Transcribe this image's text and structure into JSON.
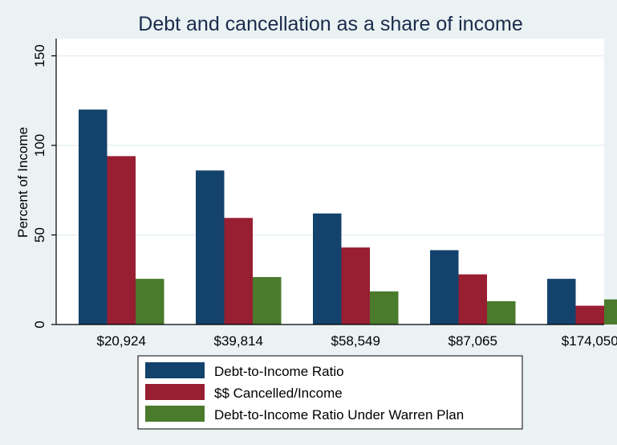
{
  "chart_data": {
    "type": "bar",
    "title": "Debt and cancellation as a share of income",
    "xlabel": "",
    "ylabel": "Percent of Income",
    "ylim": [
      0,
      150
    ],
    "yticks": [
      0,
      50,
      100,
      150
    ],
    "ytick_labels": [
      "0",
      "50",
      "100",
      "150"
    ],
    "grid": true,
    "categories": [
      "$20,924",
      "$39,814",
      "$58,549",
      "$87,065",
      "$174,050"
    ],
    "series": [
      {
        "name": "Debt-to-Income Ratio",
        "color": "#13426c",
        "values": [
          120,
          86,
          62,
          41.5,
          25.5
        ]
      },
      {
        "name": "$$ Cancelled/Income",
        "color": "#981e32",
        "values": [
          94,
          59.5,
          43,
          28,
          10.5
        ]
      },
      {
        "name": "Debt-to-Income Ratio Under Warren Plan",
        "color": "#4a7a2c",
        "values": [
          25.5,
          26.5,
          18.5,
          13,
          14
        ]
      }
    ],
    "legend_position": "bottom"
  }
}
